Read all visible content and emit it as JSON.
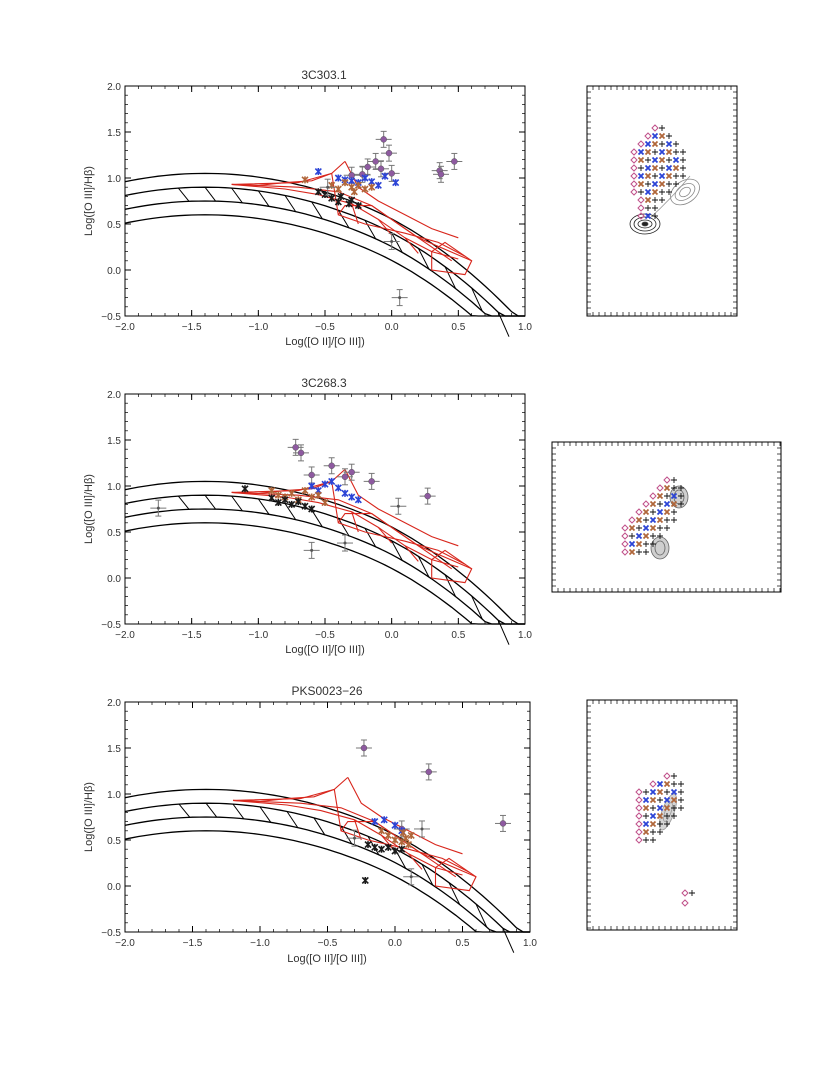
{
  "chart_data": [
    {
      "type": "scatter",
      "title": "3C303.1",
      "xlabel": "Log([O II]/[O III])",
      "ylabel": "Log([O III]/Hβ)",
      "xlim": [
        -2.0,
        1.0
      ],
      "ylim": [
        -0.5,
        2.0
      ],
      "xticks": [
        "−2.0",
        "−1.5",
        "−1.0",
        "−0.5",
        "0.0",
        "0.5",
        "1.0"
      ],
      "yticks": [
        "−0.5",
        "0.0",
        "0.5",
        "1.0",
        "1.5",
        "2.0"
      ],
      "series": [
        {
          "name": "purple",
          "color": "#8e5aa0",
          "marker": "circle-errorbar",
          "points": [
            [
              -0.06,
              1.42
            ],
            [
              -0.02,
              1.27
            ],
            [
              -0.12,
              1.18
            ],
            [
              -0.18,
              1.12
            ],
            [
              -0.22,
              1.04
            ],
            [
              -0.08,
              1.1
            ],
            [
              0.0,
              1.05
            ],
            [
              0.36,
              1.08
            ],
            [
              0.37,
              1.04
            ],
            [
              0.47,
              1.18
            ],
            [
              -0.3,
              1.03
            ]
          ]
        },
        {
          "name": "blue",
          "color": "#2b43d6",
          "marker": "asterisk",
          "points": [
            [
              -0.55,
              1.07
            ],
            [
              -0.4,
              1.0
            ],
            [
              -0.35,
              0.98
            ],
            [
              -0.3,
              0.97
            ],
            [
              -0.25,
              0.95
            ],
            [
              -0.2,
              1.0
            ],
            [
              -0.15,
              0.96
            ],
            [
              -0.1,
              0.92
            ],
            [
              -0.05,
              1.02
            ],
            [
              0.03,
              0.95
            ]
          ]
        },
        {
          "name": "brown",
          "color": "#b0663a",
          "marker": "asterisk",
          "points": [
            [
              -0.45,
              0.92
            ],
            [
              -0.4,
              0.88
            ],
            [
              -0.35,
              0.95
            ],
            [
              -0.3,
              0.9
            ],
            [
              -0.28,
              0.85
            ],
            [
              -0.25,
              0.92
            ],
            [
              -0.2,
              0.88
            ],
            [
              -0.15,
              0.9
            ],
            [
              -0.65,
              0.98
            ]
          ]
        },
        {
          "name": "black",
          "color": "#1a1a1a",
          "marker": "asterisk",
          "points": [
            [
              -0.55,
              0.85
            ],
            [
              -0.5,
              0.82
            ],
            [
              -0.45,
              0.78
            ],
            [
              -0.4,
              0.74
            ],
            [
              -0.38,
              0.8
            ],
            [
              -0.32,
              0.72
            ],
            [
              -0.3,
              0.76
            ],
            [
              -0.25,
              0.7
            ]
          ]
        },
        {
          "name": "grey",
          "color": "#555555",
          "marker": "errorbar",
          "points": [
            [
              0.0,
              0.31
            ],
            [
              0.06,
              -0.3
            ],
            [
              -0.48,
              0.9
            ]
          ]
        }
      ]
    },
    {
      "type": "scatter",
      "title": "3C268.3",
      "xlabel": "Log([O II]/[O III])",
      "ylabel": "Log([O III]/Hβ)",
      "xlim": [
        -2.0,
        1.0
      ],
      "ylim": [
        -0.5,
        2.0
      ],
      "xticks": [
        "−2.0",
        "−1.5",
        "−1.0",
        "−0.5",
        "0.0",
        "0.5",
        "1.0"
      ],
      "yticks": [
        "−0.5",
        "0.0",
        "0.5",
        "1.0",
        "1.5",
        "2.0"
      ],
      "series": [
        {
          "name": "purple",
          "color": "#8e5aa0",
          "marker": "circle-errorbar",
          "points": [
            [
              -0.72,
              1.42
            ],
            [
              -0.68,
              1.36
            ],
            [
              -0.45,
              1.22
            ],
            [
              -0.35,
              1.1
            ],
            [
              -0.15,
              1.05
            ],
            [
              -0.3,
              1.15
            ],
            [
              0.27,
              0.89
            ],
            [
              -0.6,
              1.12
            ]
          ]
        },
        {
          "name": "blue",
          "color": "#2b43d6",
          "marker": "asterisk",
          "points": [
            [
              -0.6,
              1.0
            ],
            [
              -0.55,
              0.95
            ],
            [
              -0.5,
              1.02
            ],
            [
              -0.4,
              0.98
            ],
            [
              -0.35,
              0.92
            ],
            [
              -0.3,
              0.88
            ],
            [
              -0.25,
              0.85
            ],
            [
              -0.45,
              1.05
            ]
          ]
        },
        {
          "name": "brown",
          "color": "#b0663a",
          "marker": "asterisk",
          "points": [
            [
              -0.9,
              0.95
            ],
            [
              -0.85,
              0.9
            ],
            [
              -0.8,
              0.88
            ],
            [
              -0.75,
              0.92
            ],
            [
              -0.7,
              0.85
            ],
            [
              -0.65,
              0.95
            ],
            [
              -0.6,
              0.88
            ],
            [
              -0.55,
              0.9
            ],
            [
              -0.5,
              0.82
            ]
          ]
        },
        {
          "name": "black",
          "color": "#1a1a1a",
          "marker": "asterisk",
          "points": [
            [
              -0.9,
              0.87
            ],
            [
              -0.85,
              0.82
            ],
            [
              -0.8,
              0.85
            ],
            [
              -0.75,
              0.8
            ],
            [
              -0.7,
              0.83
            ],
            [
              -0.65,
              0.78
            ],
            [
              -1.1,
              0.97
            ],
            [
              -0.6,
              0.75
            ]
          ]
        },
        {
          "name": "grey",
          "color": "#555555",
          "marker": "errorbar",
          "points": [
            [
              -1.75,
              0.76
            ],
            [
              -0.6,
              0.3
            ],
            [
              -0.35,
              0.38
            ],
            [
              0.05,
              0.78
            ]
          ]
        }
      ]
    },
    {
      "type": "scatter",
      "title": "PKS0023−26",
      "xlabel": "Log([O II]/[O III])",
      "ylabel": "Log([O III]/Hβ)",
      "xlim": [
        -2.0,
        1.0
      ],
      "ylim": [
        -0.5,
        2.0
      ],
      "xticks": [
        "−2.0",
        "−1.5",
        "−1.0",
        "−0.5",
        "0.0",
        "0.5",
        "1.0"
      ],
      "yticks": [
        "−0.5",
        "0.0",
        "0.5",
        "1.0",
        "1.5",
        "2.0"
      ],
      "series": [
        {
          "name": "purple",
          "color": "#8e5aa0",
          "marker": "circle-errorbar",
          "points": [
            [
              -0.23,
              1.5
            ],
            [
              0.25,
              1.24
            ],
            [
              0.8,
              0.68
            ],
            [
              0.05,
              0.62
            ]
          ]
        },
        {
          "name": "blue",
          "color": "#2b43d6",
          "marker": "asterisk",
          "points": [
            [
              -0.08,
              0.72
            ],
            [
              0.0,
              0.66
            ],
            [
              0.05,
              0.6
            ],
            [
              -0.15,
              0.7
            ]
          ]
        },
        {
          "name": "brown",
          "color": "#b0663a",
          "marker": "asterisk",
          "points": [
            [
              -0.05,
              0.55
            ],
            [
              0.0,
              0.5
            ],
            [
              0.05,
              0.48
            ],
            [
              0.1,
              0.45
            ],
            [
              0.12,
              0.55
            ],
            [
              0.06,
              0.58
            ],
            [
              -0.1,
              0.6
            ],
            [
              0.08,
              0.52
            ]
          ]
        },
        {
          "name": "black",
          "color": "#1a1a1a",
          "marker": "asterisk",
          "points": [
            [
              -0.2,
              0.45
            ],
            [
              -0.15,
              0.42
            ],
            [
              -0.1,
              0.4
            ],
            [
              -0.05,
              0.42
            ],
            [
              0.0,
              0.38
            ],
            [
              0.05,
              0.4
            ],
            [
              -0.22,
              0.06
            ]
          ]
        },
        {
          "name": "grey",
          "color": "#555555",
          "marker": "errorbar",
          "points": [
            [
              0.12,
              0.1
            ],
            [
              -0.3,
              0.52
            ],
            [
              0.2,
              0.62
            ]
          ]
        }
      ]
    }
  ],
  "colors": {
    "model_grid": "#000000",
    "shock_grid": "#d8261c",
    "axis": "#000000"
  }
}
